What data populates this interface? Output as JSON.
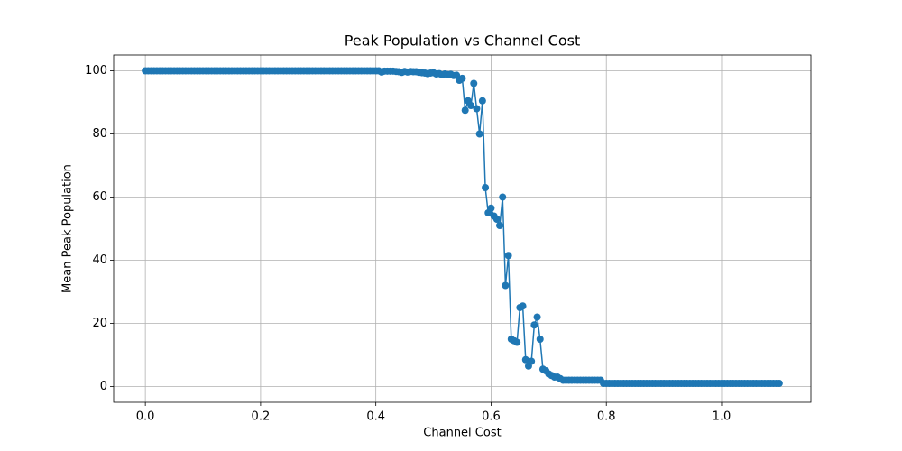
{
  "chart_data": {
    "type": "line",
    "title": "Peak Population vs Channel Cost",
    "x_label": "Channel Cost",
    "y_label": "Mean Peak Population",
    "color": "#1f77b4",
    "grid": true,
    "xlim": [
      -0.055,
      1.155
    ],
    "ylim": [
      -5,
      105
    ],
    "xticks": [
      {
        "value": 0,
        "label": "0.0"
      },
      0.2,
      0.4,
      0.6,
      0.8,
      {
        "value": 1,
        "label": "1.0"
      }
    ],
    "yticks": [
      0,
      20,
      40,
      60,
      80,
      100
    ],
    "x": [
      0,
      0.005,
      0.01,
      0.015,
      0.02,
      0.025,
      0.03,
      0.035,
      0.04,
      0.045,
      0.05,
      0.055,
      0.06,
      0.065,
      0.07,
      0.075,
      0.08,
      0.085,
      0.09,
      0.095,
      0.1,
      0.105,
      0.11,
      0.115,
      0.12,
      0.125,
      0.13,
      0.135,
      0.14,
      0.145,
      0.15,
      0.155,
      0.16,
      0.165,
      0.17,
      0.175,
      0.18,
      0.185,
      0.19,
      0.195,
      0.2,
      0.205,
      0.21,
      0.215,
      0.22,
      0.225,
      0.23,
      0.235,
      0.24,
      0.245,
      0.25,
      0.255,
      0.26,
      0.265,
      0.27,
      0.275,
      0.28,
      0.285,
      0.29,
      0.295,
      0.3,
      0.305,
      0.31,
      0.315,
      0.32,
      0.325,
      0.33,
      0.335,
      0.34,
      0.345,
      0.35,
      0.355,
      0.36,
      0.365,
      0.37,
      0.375,
      0.38,
      0.385,
      0.39,
      0.395,
      0.4,
      0.405,
      0.41,
      0.415,
      0.42,
      0.425,
      0.43,
      0.435,
      0.44,
      0.445,
      0.45,
      0.455,
      0.46,
      0.465,
      0.47,
      0.475,
      0.48,
      0.485,
      0.49,
      0.495,
      0.5,
      0.505,
      0.51,
      0.515,
      0.52,
      0.525,
      0.53,
      0.535,
      0.54,
      0.545,
      0.55,
      0.555,
      0.56,
      0.565,
      0.57,
      0.575,
      0.58,
      0.585,
      0.59,
      0.595,
      0.6,
      0.605,
      0.61,
      0.615,
      0.62,
      0.625,
      0.63,
      0.635,
      0.64,
      0.645,
      0.65,
      0.655,
      0.66,
      0.665,
      0.67,
      0.675,
      0.68,
      0.685,
      0.69,
      0.695,
      0.7,
      0.705,
      0.71,
      0.715,
      0.72,
      0.725,
      0.73,
      0.735,
      0.74,
      0.745,
      0.75,
      0.755,
      0.76,
      0.765,
      0.77,
      0.775,
      0.78,
      0.785,
      0.79,
      0.795,
      0.8,
      0.805,
      0.81,
      0.815,
      0.82,
      0.825,
      0.83,
      0.835,
      0.84,
      0.845,
      0.85,
      0.855,
      0.86,
      0.865,
      0.87,
      0.875,
      0.88,
      0.885,
      0.89,
      0.895,
      0.9,
      0.905,
      0.91,
      0.915,
      0.92,
      0.925,
      0.93,
      0.935,
      0.94,
      0.945,
      0.95,
      0.955,
      0.96,
      0.965,
      0.97,
      0.975,
      0.98,
      0.985,
      0.99,
      0.995,
      1,
      1.005,
      1.01,
      1.015,
      1.02,
      1.025,
      1.03,
      1.035,
      1.04,
      1.045,
      1.05,
      1.055,
      1.06,
      1.065,
      1.07,
      1.075,
      1.08,
      1.085,
      1.09,
      1.095,
      1.1
    ],
    "values": [
      100,
      100,
      100,
      100,
      100,
      100,
      100,
      100,
      100,
      100,
      100,
      100,
      100,
      100,
      100,
      100,
      100,
      100,
      100,
      100,
      100,
      100,
      100,
      100,
      100,
      100,
      100,
      100,
      100,
      100,
      100,
      100,
      100,
      100,
      100,
      100,
      100,
      100,
      100,
      100,
      100,
      100,
      100,
      100,
      100,
      100,
      100,
      100,
      100,
      100,
      100,
      100,
      100,
      100,
      100,
      100,
      100,
      100,
      100,
      100,
      100,
      100,
      100,
      100,
      100,
      100,
      100,
      100,
      100,
      100,
      100,
      100,
      100,
      100,
      100,
      100,
      100,
      100,
      100,
      100,
      100,
      100,
      99.6,
      99.9,
      99.9,
      99.9,
      99.9,
      99.8,
      99.7,
      99.5,
      99.8,
      99.6,
      99.8,
      99.7,
      99.7,
      99.5,
      99.4,
      99.3,
      99.1,
      99.3,
      99.4,
      99.0,
      99.1,
      98.7,
      99.0,
      98.8,
      98.9,
      98.5,
      98.6,
      97.0,
      97.6,
      87.5,
      90.5,
      89,
      96,
      88,
      80,
      90.5,
      63,
      55,
      56.5,
      54,
      53,
      51,
      60,
      32,
      41.5,
      15,
      14.5,
      14,
      25,
      25.5,
      8.5,
      6.5,
      8,
      19.5,
      22,
      15,
      5.5,
      5,
      4,
      3.5,
      3,
      3,
      2.5,
      2,
      2,
      2,
      2,
      2,
      2,
      2,
      2,
      2,
      2,
      2,
      2,
      2,
      2,
      1,
      1,
      1,
      1,
      1,
      1,
      1,
      1,
      1,
      1,
      1,
      1,
      1,
      1,
      1,
      1,
      1,
      1,
      1,
      1,
      1,
      1,
      1,
      1,
      1,
      1,
      1,
      1,
      1,
      1,
      1,
      1,
      1,
      1,
      1,
      1,
      1,
      1,
      1,
      1,
      1,
      1,
      1,
      1,
      1,
      1,
      1,
      1,
      1,
      1,
      1,
      1,
      1,
      1,
      1,
      1,
      1,
      1,
      1,
      1,
      1,
      1
    ]
  }
}
